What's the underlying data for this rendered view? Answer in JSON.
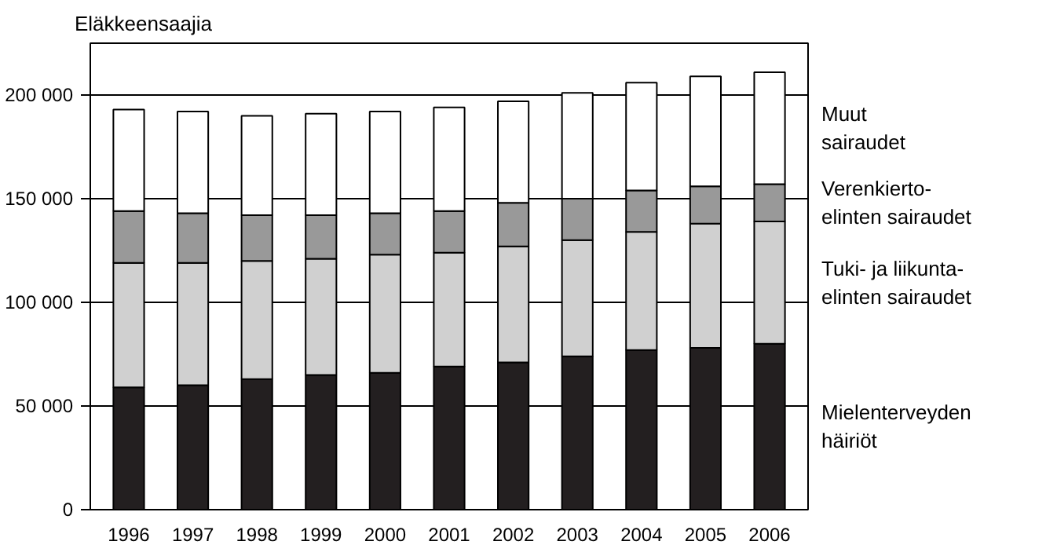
{
  "chart_data": {
    "type": "bar",
    "stacked": true,
    "ylabel": "Eläkkeensaajia",
    "categories": [
      "1996",
      "1997",
      "1998",
      "1999",
      "2000",
      "2001",
      "2002",
      "2003",
      "2004",
      "2005",
      "2006"
    ],
    "series": [
      {
        "name": "Mielenterveyden\nhäiriöt",
        "color": "#231f20",
        "values": [
          59000,
          60000,
          63000,
          65000,
          66000,
          69000,
          71000,
          74000,
          77000,
          78000,
          80000
        ]
      },
      {
        "name": "Tuki- ja liikunta-\nelinten sairaudet",
        "color": "#d0d0d0",
        "values": [
          60000,
          59000,
          57000,
          56000,
          57000,
          55000,
          56000,
          56000,
          57000,
          60000,
          59000
        ]
      },
      {
        "name": "Verenkierto-\nelinten sairaudet",
        "color": "#999999",
        "values": [
          25000,
          24000,
          22000,
          21000,
          20000,
          20000,
          21000,
          20000,
          20000,
          18000,
          18000
        ]
      },
      {
        "name": "Muut\nsairaudet",
        "color": "#ffffff",
        "values": [
          49000,
          49000,
          48000,
          49000,
          49000,
          50000,
          49000,
          51000,
          52000,
          53000,
          54000
        ]
      }
    ],
    "ylim": [
      0,
      225000
    ],
    "yticks": [
      {
        "value": 0,
        "label": "0"
      },
      {
        "value": 50000,
        "label": "50 000"
      },
      {
        "value": 100000,
        "label": "100 000"
      },
      {
        "value": 150000,
        "label": "150 000"
      },
      {
        "value": 200000,
        "label": "200 000"
      }
    ],
    "grid": "y"
  }
}
